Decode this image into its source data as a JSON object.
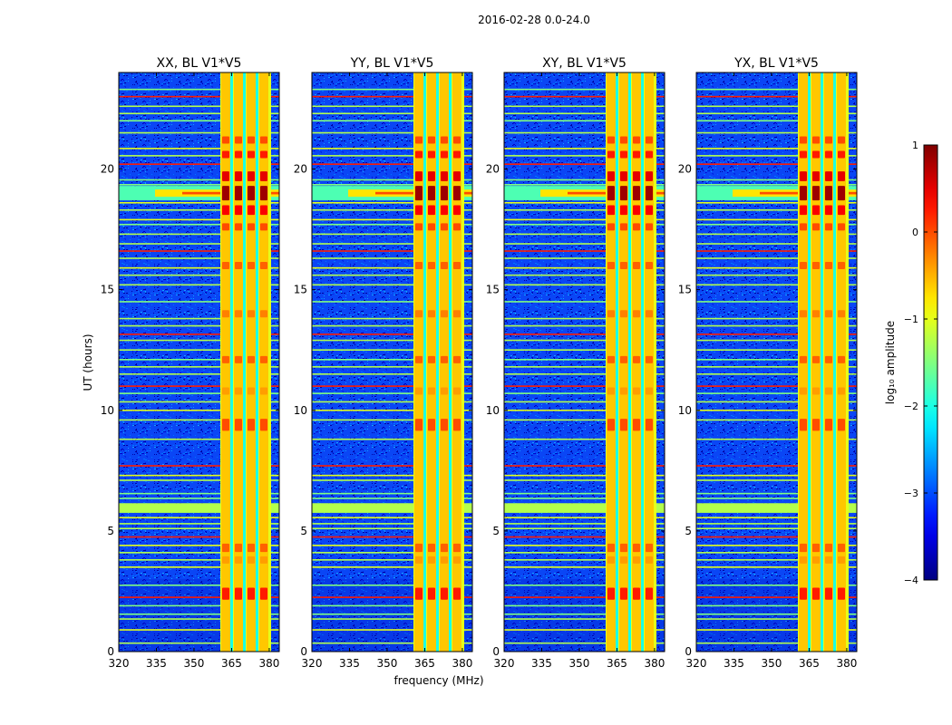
{
  "figure": {
    "suptitle": "2016-02-28 0.0-24.0",
    "xlabel": "frequency (MHz)",
    "ylabel": "UT (hours)"
  },
  "chart_data": [
    {
      "type": "heatmap",
      "title": "XX, BL V1*V5",
      "xlabel": "frequency (MHz)",
      "ylabel": "UT (hours)",
      "xlim": [
        320,
        384
      ],
      "ylim": [
        0,
        24
      ],
      "xticks": [
        "320",
        "335",
        "350",
        "365",
        "380"
      ],
      "yticks": [
        "0",
        "5",
        "10",
        "15",
        "20"
      ]
    },
    {
      "type": "heatmap",
      "title": "YY, BL V1*V5",
      "xlabel": "",
      "ylabel": "",
      "xlim": [
        320,
        384
      ],
      "ylim": [
        0,
        24
      ],
      "xticks": [
        "320",
        "335",
        "350",
        "365",
        "380"
      ],
      "yticks": [
        "0",
        "5",
        "10",
        "15",
        "20"
      ]
    },
    {
      "type": "heatmap",
      "title": "XY, BL V1*V5",
      "xlabel": "",
      "ylabel": "",
      "xlim": [
        320,
        384
      ],
      "ylim": [
        0,
        24
      ],
      "xticks": [
        "320",
        "335",
        "350",
        "365",
        "380"
      ],
      "yticks": [
        "0",
        "5",
        "10",
        "15",
        "20"
      ]
    },
    {
      "type": "heatmap",
      "title": "YX, BL V1*V5",
      "xlabel": "",
      "ylabel": "",
      "xlim": [
        320,
        384
      ],
      "ylim": [
        0,
        24
      ],
      "xticks": [
        "320",
        "335",
        "350",
        "365",
        "380"
      ],
      "yticks": [
        "0",
        "5",
        "10",
        "15",
        "20"
      ]
    }
  ],
  "colorbar": {
    "label": "log₁₀ amplitude",
    "range": [
      -4,
      1
    ],
    "tick_values": [
      1,
      0,
      -1,
      -2,
      -3,
      -4
    ],
    "ticks": [
      "1",
      "0",
      "−1",
      "−2",
      "−3",
      "−4"
    ],
    "colormap": "jet"
  }
}
